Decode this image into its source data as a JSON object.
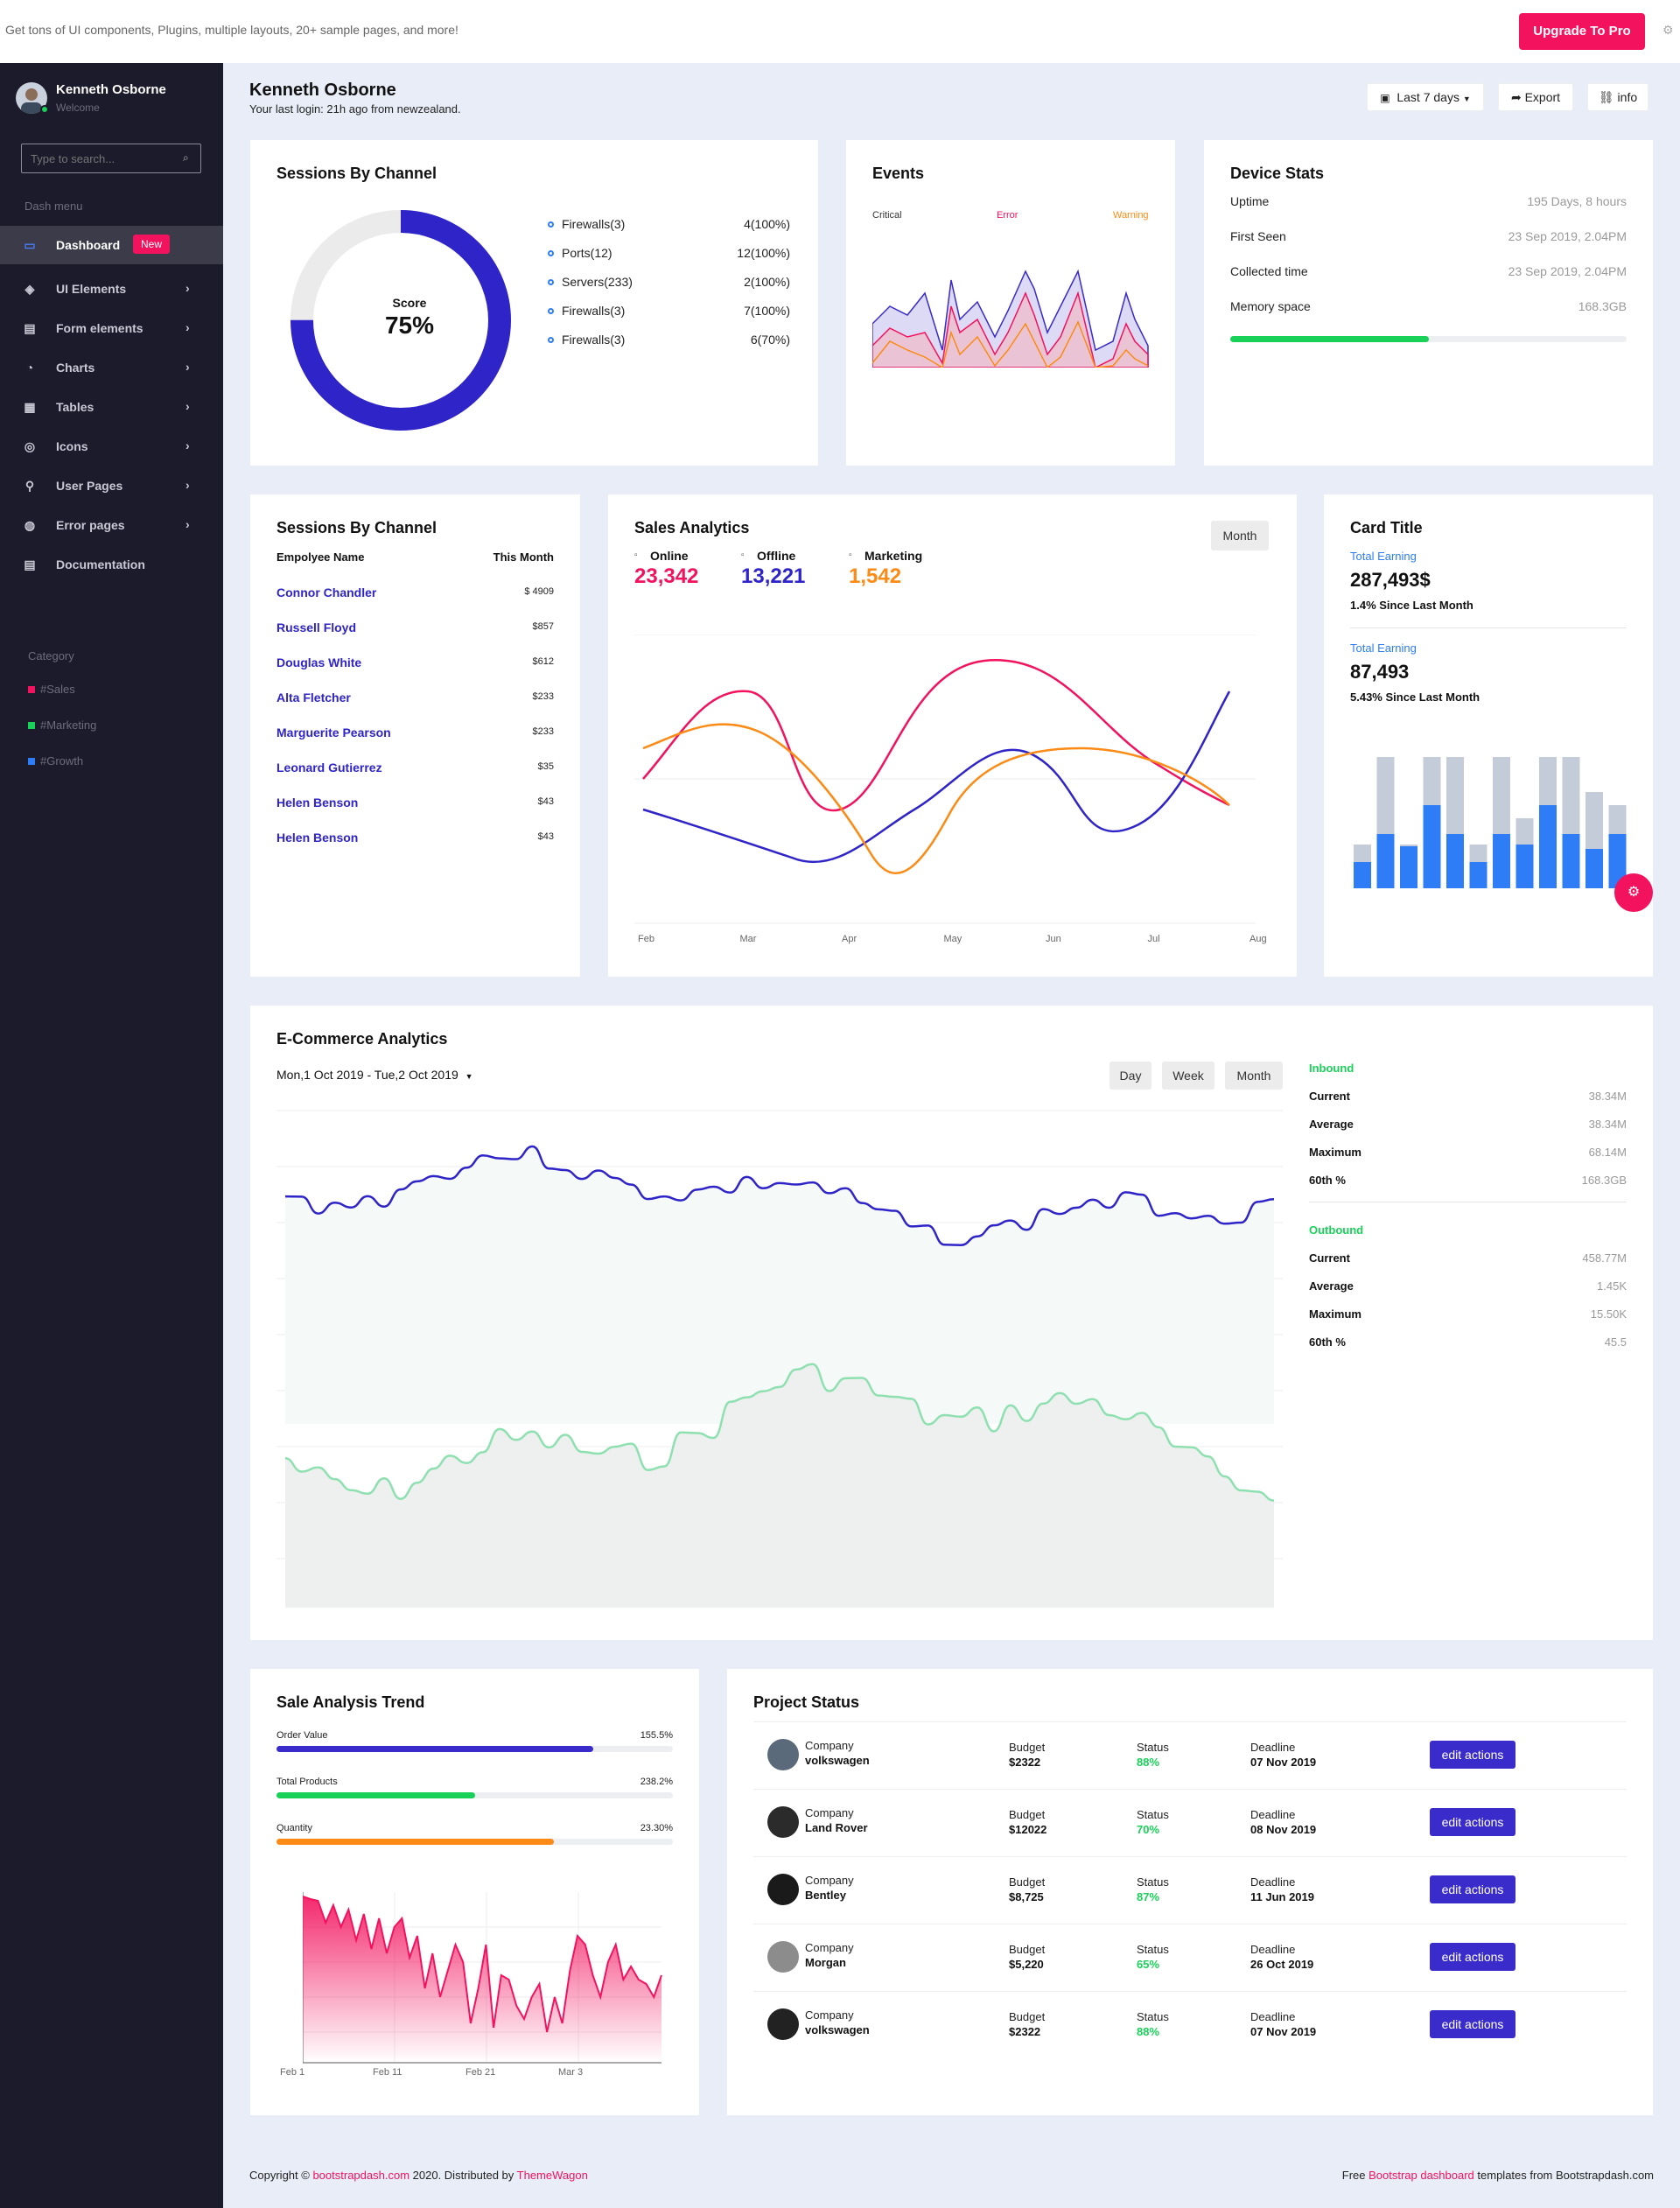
{
  "topbar": {
    "promo": "Get tons of UI components, Plugins, multiple layouts, 20+ sample pages, and more!",
    "upgrade": "Upgrade To Pro"
  },
  "sidebar": {
    "user_name": "Kenneth Osborne",
    "user_sub": "Welcome",
    "search_placeholder": "Type to search...",
    "section": "Dash menu",
    "items": [
      {
        "label": "Dashboard",
        "badge": "New",
        "icon": "monitor-icon"
      },
      {
        "label": "UI Elements",
        "icon": "layers-icon"
      },
      {
        "label": "Form elements",
        "icon": "clipboard-icon"
      },
      {
        "label": "Charts",
        "icon": "pie-chart-icon"
      },
      {
        "label": "Tables",
        "icon": "grid-icon"
      },
      {
        "label": "Icons",
        "icon": "compass-icon"
      },
      {
        "label": "User Pages",
        "icon": "user-plus-icon"
      },
      {
        "label": "Error pages",
        "icon": "globe-icon"
      },
      {
        "label": "Documentation",
        "icon": "file-icon"
      }
    ],
    "category_title": "Category",
    "categories": [
      {
        "label": "#Sales",
        "color": "#f2125e"
      },
      {
        "label": "#Marketing",
        "color": "#19d158"
      },
      {
        "label": "#Growth",
        "color": "#2e7cf6"
      }
    ]
  },
  "header": {
    "name": "Kenneth Osborne",
    "last_login": "Your last login: 21h ago from newzealand.",
    "range": "Last 7 days",
    "export": "Export",
    "info": "info"
  },
  "sessions": {
    "title": "Sessions By Channel",
    "score_label": "Score",
    "score_value": "75%",
    "score_fraction": 0.75,
    "items": [
      {
        "label": "Firewalls(3)",
        "value": "4(100%)"
      },
      {
        "label": "Ports(12)",
        "value": "12(100%)"
      },
      {
        "label": "Servers(233)",
        "value": "2(100%)"
      },
      {
        "label": "Firewalls(3)",
        "value": "7(100%)"
      },
      {
        "label": "Firewalls(3)",
        "value": "6(70%)"
      }
    ]
  },
  "events": {
    "title": "Events",
    "legend": [
      {
        "label": "Critical",
        "color": "#333"
      },
      {
        "label": "Error",
        "color": "#f2125e"
      },
      {
        "label": "Warning",
        "color": "#fb8b16"
      }
    ]
  },
  "device": {
    "title": "Device Stats",
    "rows": [
      {
        "label": "Uptime",
        "value": "195 Days, 8 hours"
      },
      {
        "label": "First Seen",
        "value": "23 Sep 2019, 2.04PM"
      },
      {
        "label": "Collected time",
        "value": "23 Sep 2019, 2.04PM"
      },
      {
        "label": "Memory space",
        "value": "168.3GB"
      }
    ],
    "memory_fraction": 0.5
  },
  "employees": {
    "title": "Sessions By Channel",
    "col1": "Empolyee Name",
    "col2": "This Month",
    "rows": [
      {
        "name": "Connor Chandler",
        "amount": "$ 4909"
      },
      {
        "name": "Russell Floyd",
        "amount": "$857"
      },
      {
        "name": "Douglas White",
        "amount": "$612"
      },
      {
        "name": "Alta Fletcher",
        "amount": "$233"
      },
      {
        "name": "Marguerite Pearson",
        "amount": "$233"
      },
      {
        "name": "Leonard Gutierrez",
        "amount": "$35"
      },
      {
        "name": "Helen Benson",
        "amount": "$43"
      },
      {
        "name": "Helen Benson",
        "amount": "$43"
      }
    ]
  },
  "sales": {
    "title": "Sales Analytics",
    "button": "Month",
    "stats": [
      {
        "label": "Online",
        "value": "23,342",
        "color": "#f2125e",
        "icon": "monitor-icon"
      },
      {
        "label": "Offline",
        "value": "13,221",
        "color": "#2f24c7",
        "icon": "inbox-icon"
      },
      {
        "label": "Marketing",
        "value": "1,542",
        "color": "#fb8b16",
        "icon": "tag-icon"
      }
    ],
    "months": [
      "Feb",
      "Mar",
      "Apr",
      "May",
      "Jun",
      "Jul",
      "Aug"
    ]
  },
  "cardtitle": {
    "title": "Card Title",
    "blocks": [
      {
        "label": "Total Earning",
        "value": "287,493$",
        "sub": "1.4% Since Last Month"
      },
      {
        "label": "Total Earning",
        "value": "87,493",
        "sub": "5.43% Since Last Month"
      }
    ]
  },
  "ecommerce": {
    "title": "E-Commerce Analytics",
    "date_range": "Mon,1 Oct 2019 - Tue,2 Oct 2019",
    "buttons": [
      "Day",
      "Week",
      "Month"
    ],
    "inbound_title": "Inbound",
    "inbound": [
      {
        "label": "Current",
        "value": "38.34M"
      },
      {
        "label": "Average",
        "value": "38.34M"
      },
      {
        "label": "Maximum",
        "value": "68.14M"
      },
      {
        "label": "60th %",
        "value": "168.3GB"
      }
    ],
    "outbound_title": "Outbound",
    "outbound": [
      {
        "label": "Current",
        "value": "458.77M"
      },
      {
        "label": "Average",
        "value": "1.45K"
      },
      {
        "label": "Maximum",
        "value": "15.50K"
      },
      {
        "label": "60th %",
        "value": "45.5"
      }
    ]
  },
  "trend": {
    "title": "Sale Analysis Trend",
    "bars": [
      {
        "label": "Order Value",
        "value": "155.5%",
        "fraction": 0.8,
        "color": "#3a2bcb"
      },
      {
        "label": "Total Products",
        "value": "238.2%",
        "fraction": 0.5,
        "color": "#19d158"
      },
      {
        "label": "Quantity",
        "value": "23.30%",
        "fraction": 0.7,
        "color": "#fb8b16"
      }
    ],
    "axis": [
      "Feb 1",
      "Feb 11",
      "Feb 21",
      "Mar 3"
    ]
  },
  "projects": {
    "title": "Project Status",
    "company_label": "Company",
    "budget_label": "Budget",
    "status_label": "Status",
    "deadline_label": "Deadline",
    "action": "edit actions",
    "rows": [
      {
        "company": "volkswagen",
        "budget": "$2322",
        "status": "88%",
        "deadline": "07 Nov 2019"
      },
      {
        "company": "Land Rover",
        "budget": "$12022",
        "status": "70%",
        "deadline": "08 Nov 2019"
      },
      {
        "company": "Bentley",
        "budget": "$8,725",
        "status": "87%",
        "deadline": "11 Jun 2019"
      },
      {
        "company": "Morgan",
        "budget": "$5,220",
        "status": "65%",
        "deadline": "26 Oct 2019"
      },
      {
        "company": "volkswagen",
        "budget": "$2322",
        "status": "88%",
        "deadline": "07 Nov 2019"
      }
    ]
  },
  "footer": {
    "c1": "Copyright © ",
    "c2": "bootstrapdash.com",
    "c3": " 2020. Distributed by ",
    "c4": "ThemeWagon",
    "r1": "Free ",
    "r2": "Bootstrap dashboard",
    "r3": " templates from Bootstrapdash.com"
  }
}
